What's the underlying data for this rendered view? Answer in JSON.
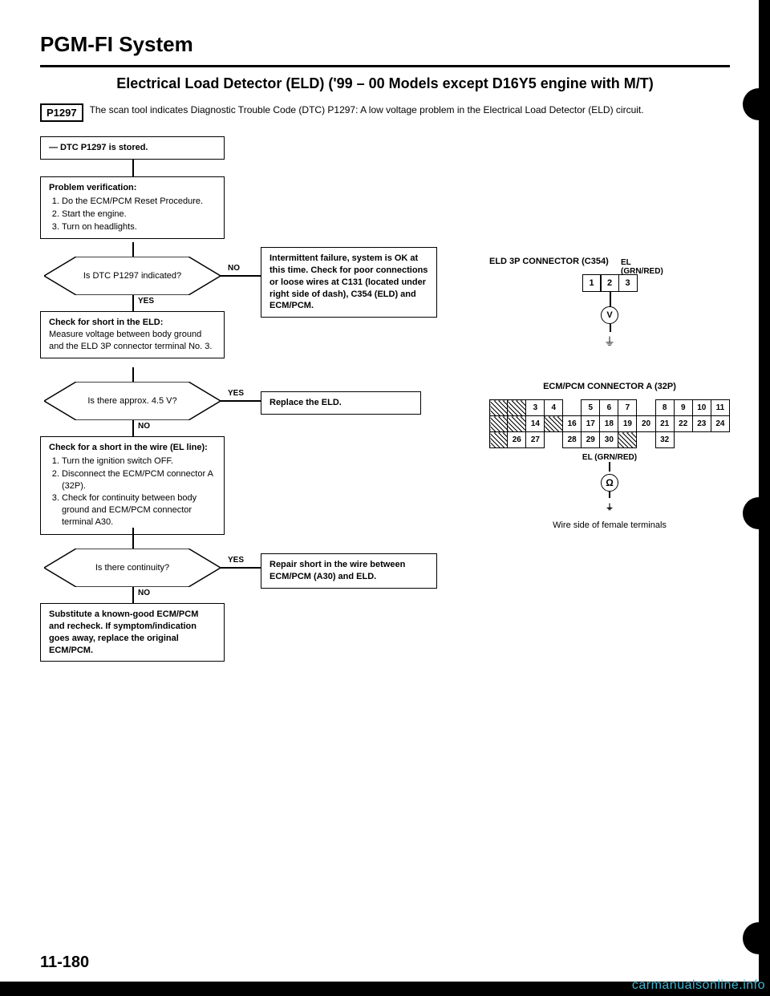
{
  "title": "PGM-FI System",
  "subtitle": "Electrical Load Detector (ELD) ('99 – 00 Models except D16Y5 engine with M/T)",
  "code": "P1297",
  "description": "The scan tool indicates Diagnostic Trouble Code (DTC) P1297: A low voltage problem in the Electrical Load Detector (ELD) circuit.",
  "flow": {
    "b1": "— DTC P1297 is stored.",
    "b2_title": "Problem verification:",
    "b2_items": [
      "Do the ECM/PCM Reset Procedure.",
      "Start the engine.",
      "Turn on headlights."
    ],
    "d1": "Is DTC P1297 indicated?",
    "d1_yes": "YES",
    "d1_no": "NO",
    "b3": "Intermittent failure, system is OK at this time. Check for poor connections or loose wires at C131 (located under right side of dash), C354 (ELD) and ECM/PCM.",
    "b4_title": "Check for short in the ELD:",
    "b4_text": "Measure voltage between body ground and the ELD 3P connector terminal No. 3.",
    "d2": "Is there approx. 4.5 V?",
    "d2_yes": "YES",
    "d2_no": "NO",
    "b5": "Replace the ELD.",
    "b6_title": "Check for a short in the wire (EL line):",
    "b6_items": [
      "Turn the ignition switch OFF.",
      "Disconnect the ECM/PCM connector A (32P).",
      "Check for continuity between body ground and ECM/PCM connector terminal A30."
    ],
    "d3": "Is there continuity?",
    "d3_yes": "YES",
    "d3_no": "NO",
    "b7": "Repair short in the wire between ECM/PCM (A30) and ELD.",
    "b8": "Substitute a known-good ECM/PCM and recheck. If symptom/indication goes away, replace the original ECM/PCM."
  },
  "side": {
    "conn3p_title": "ELD 3P CONNECTOR (C354)",
    "conn3p_cells": [
      "1",
      "2",
      "3"
    ],
    "conn3p_wire_lbl1": "EL",
    "conn3p_wire_lbl2": "(GRN/RED)",
    "v_symbol": "V",
    "conn32_title": "ECM/PCM CONNECTOR A (32P)",
    "row1": [
      "",
      "",
      "3",
      "4",
      "",
      "5",
      "6",
      "7",
      "",
      "8",
      "9",
      "10",
      "11"
    ],
    "row1_hatch": [
      true,
      true,
      false,
      false,
      null,
      false,
      false,
      false,
      null,
      false,
      false,
      false,
      false
    ],
    "row2": [
      "",
      "",
      "14",
      "",
      "16",
      "17",
      "18",
      "19",
      "20",
      "21",
      "22",
      "23",
      "24"
    ],
    "row2_hatch": [
      true,
      true,
      false,
      true,
      false,
      false,
      false,
      false,
      false,
      false,
      false,
      false,
      false
    ],
    "row3": [
      "",
      "26",
      "27",
      "",
      "28",
      "29",
      "30",
      "",
      "",
      "32",
      ""
    ],
    "row3_hatch": [
      true,
      false,
      false,
      null,
      false,
      false,
      false,
      true,
      null,
      false,
      null
    ],
    "conn32_wire": "EL (GRN/RED)",
    "ohm": "Ω",
    "wire_note": "Wire side of female terminals"
  },
  "page_number": "11-180",
  "watermark": "carmanualsonline.info"
}
